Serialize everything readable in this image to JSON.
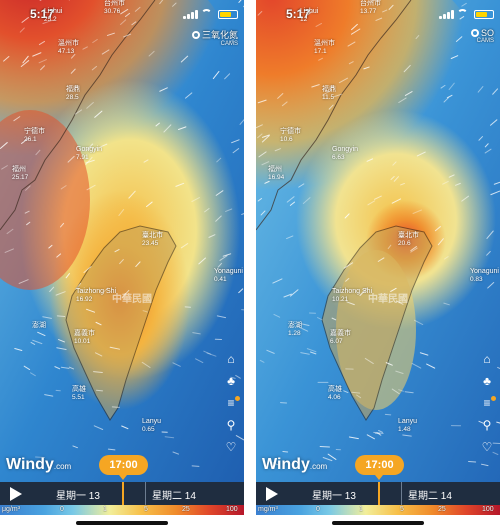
{
  "colors": {
    "accent": "#f5a623",
    "timeline_bg": "#1f2d40"
  },
  "panels": [
    {
      "status_time": "5:17",
      "layer_label": "三氧化氮",
      "layer_source": "CAMS",
      "cities": [
        {
          "name": "Lishui",
          "value": "25.2"
        },
        {
          "name": "台州市",
          "value": "30.76"
        },
        {
          "name": "溫州市",
          "value": "47.13"
        },
        {
          "name": "福鼎",
          "value": "28.5"
        },
        {
          "name": "宁德市",
          "value": "26.1"
        },
        {
          "name": "Gongyin",
          "value": "7.91"
        },
        {
          "name": "福州",
          "value": "25.17"
        },
        {
          "name": "臺北市",
          "value": "23.45"
        },
        {
          "name": "Yonaguni",
          "value": "0.41"
        },
        {
          "name": "Taizhong Shi",
          "value": "16.92"
        },
        {
          "name": "嘉義市",
          "value": "10.01"
        },
        {
          "name": "澎湖",
          "value": ""
        },
        {
          "name": "高雄",
          "value": "5.51"
        },
        {
          "name": "Lanyu",
          "value": "0.65"
        }
      ],
      "region_label": "中華民國",
      "logo": "Windy",
      "logo_suffix": ".com",
      "time_badge": "17:00",
      "day1": "星期一 13",
      "day2": "星期二 14",
      "legend_unit": "μg/m³",
      "legend_ticks": [
        "0",
        "1",
        "5",
        "25",
        "100"
      ]
    },
    {
      "status_time": "5:17",
      "layer_label": "SO",
      "layer_source": "CAMS",
      "cities": [
        {
          "name": "Lishui",
          "value": "12"
        },
        {
          "name": "台州市",
          "value": "13.77"
        },
        {
          "name": "溫州市",
          "value": "17.1"
        },
        {
          "name": "福鼎",
          "value": "11.5"
        },
        {
          "name": "宁德市",
          "value": "10.6"
        },
        {
          "name": "Gongyin",
          "value": "6.63"
        },
        {
          "name": "福州",
          "value": "16.94"
        },
        {
          "name": "臺北市",
          "value": "20.6"
        },
        {
          "name": "Yonaguni",
          "value": "0.83"
        },
        {
          "name": "Taizhong Shi",
          "value": "10.21"
        },
        {
          "name": "嘉義市",
          "value": "6.07"
        },
        {
          "name": "澎湖",
          "value": "1.28"
        },
        {
          "name": "高雄",
          "value": "4.06"
        },
        {
          "name": "Lanyu",
          "value": "1.48"
        }
      ],
      "region_label": "中華民國",
      "logo": "Windy",
      "logo_suffix": ".com",
      "time_badge": "17:00",
      "day1": "星期一 13",
      "day2": "星期二 14",
      "legend_unit": "mg/m³",
      "legend_ticks": [
        "0",
        "1",
        "5",
        "25",
        "100"
      ]
    }
  ]
}
